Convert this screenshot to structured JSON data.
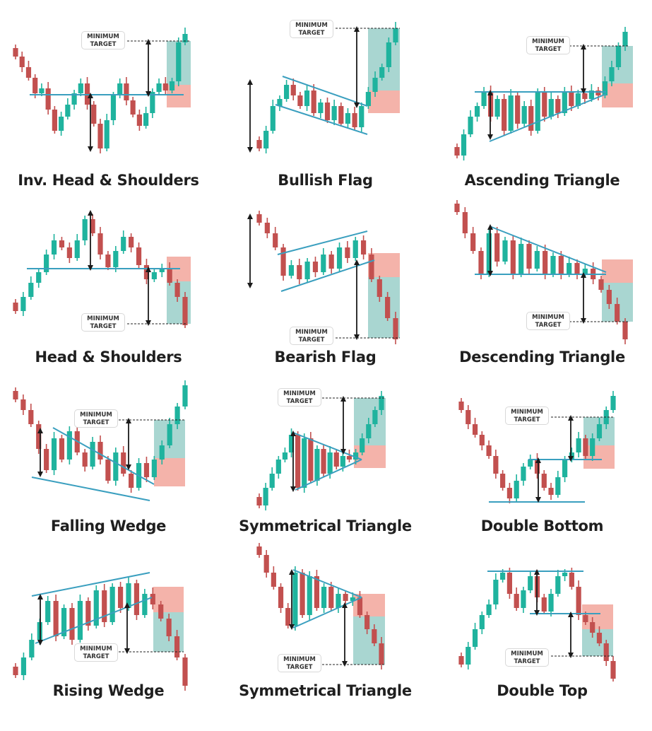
{
  "colors": {
    "bullish_candle": "#1fb39e",
    "bearish_candle": "#c2504f",
    "trend_line": "#3a9fbf",
    "target_zone": "#a9d6d1",
    "risk_zone": "#f4b3aa",
    "arrow": "#1a1a1a"
  },
  "target_label": {
    "line1": "MINIMUM",
    "line2": "TARGET"
  },
  "patterns": [
    {
      "title": "Inv. Head & Shoulders"
    },
    {
      "title": "Bullish Flag"
    },
    {
      "title": "Ascending Triangle"
    },
    {
      "title": "Head & Shoulders"
    },
    {
      "title": "Bearish Flag"
    },
    {
      "title": "Descending Triangle"
    },
    {
      "title": "Falling Wedge"
    },
    {
      "title": "Symmetrical Triangle"
    },
    {
      "title": "Double Bottom"
    },
    {
      "title": "Rising Wedge"
    },
    {
      "title": "Symmetrical Triangle"
    },
    {
      "title": "Double Top"
    }
  ]
}
